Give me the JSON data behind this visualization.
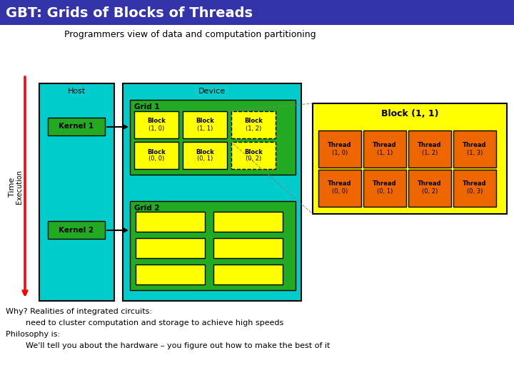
{
  "title": "GBT: Grids of Blocks of Threads",
  "title_bg": "#3333aa",
  "title_fg": "#ffffff",
  "subtitle": "Programmers view of data and computation partitioning",
  "body_bg": "#ffffff",
  "cyan_bg": "#00cccc",
  "green_bg": "#22aa22",
  "yellow_block": "#ffff00",
  "orange_thread": "#ee6600",
  "bottom_text": [
    "Why? Realities of integrated circuits:",
    "        need to cluster computation and storage to achieve high speeds",
    "Philosophy is:",
    "        We'll tell you about the hardware – you figure out how to make the best of it"
  ],
  "figsize": [
    7.2,
    5.4
  ],
  "dpi": 100
}
